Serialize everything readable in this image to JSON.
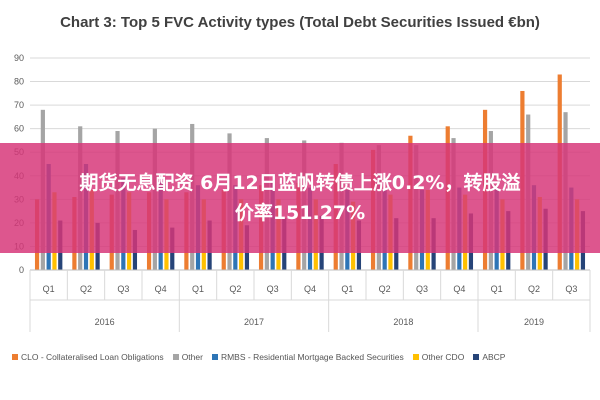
{
  "chart_data": {
    "type": "bar",
    "title": "Chart 3: Top 5 FVC Activity types (Total Debt Securities Issued €bn)",
    "xlabel": "",
    "ylabel": "",
    "ylim": [
      0,
      90
    ],
    "yticks": [
      0,
      10,
      20,
      30,
      40,
      50,
      60,
      70,
      80,
      90
    ],
    "grid": true,
    "legend_position": "bottom",
    "categories": [
      "Q1",
      "Q2",
      "Q3",
      "Q4",
      "Q1",
      "Q2",
      "Q3",
      "Q4",
      "Q1",
      "Q2",
      "Q3",
      "Q4",
      "Q1",
      "Q2",
      "Q3"
    ],
    "year_groups": [
      {
        "label": "2016",
        "span": 4
      },
      {
        "label": "2017",
        "span": 4
      },
      {
        "label": "2018",
        "span": 4
      },
      {
        "label": "2019",
        "span": 3
      }
    ],
    "series": [
      {
        "name": "CLO - Collateralised Loan Obligations",
        "color": "#ED7D31",
        "values": [
          30,
          31,
          32,
          33,
          33,
          34,
          36,
          37,
          45,
          51,
          57,
          61,
          68,
          76,
          83
        ]
      },
      {
        "name": "Other",
        "color": "#A5A5A5",
        "values": [
          68,
          61,
          59,
          60,
          62,
          58,
          56,
          55,
          54,
          53,
          53,
          56,
          59,
          66,
          67
        ]
      },
      {
        "name": "RMBS - Residential Mortgage Backed Securities",
        "color": "#2E75B6",
        "values": [
          45,
          45,
          39,
          38,
          36,
          36,
          37,
          35,
          34,
          34,
          34,
          35,
          35,
          36,
          35
        ]
      },
      {
        "name": "Other CDO",
        "color": "#FFC000",
        "values": [
          33,
          34,
          33,
          30,
          30,
          30,
          30,
          30,
          29,
          32,
          34,
          32,
          30,
          31,
          30
        ]
      },
      {
        "name": "ABCP",
        "color": "#264478",
        "values": [
          21,
          20,
          17,
          18,
          21,
          19,
          22,
          23,
          21,
          22,
          22,
          24,
          25,
          26,
          25
        ]
      }
    ]
  },
  "overlay": {
    "line1": "期货无息配资 6月12日蓝帆转债上涨0.2%，转股溢",
    "line2": "价率151.27%"
  }
}
